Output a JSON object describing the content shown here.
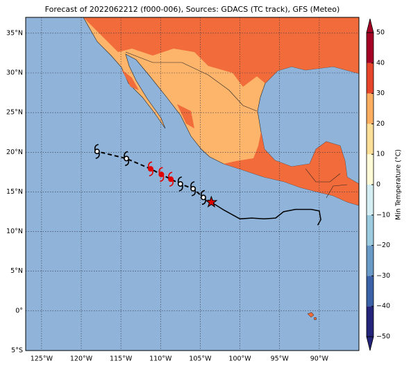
{
  "title": "Forecast of 2022062212 (f000-006), Sources: GDACS (TC track), GFS (Meteo)",
  "map": {
    "lon_range": [
      -127,
      -85
    ],
    "lat_range": [
      -5,
      37
    ],
    "lon_ticks": [
      {
        "value": -125,
        "label": "125°W"
      },
      {
        "value": -120,
        "label": "120°W"
      },
      {
        "value": -115,
        "label": "115°W"
      },
      {
        "value": -110,
        "label": "110°W"
      },
      {
        "value": -105,
        "label": "105°W"
      },
      {
        "value": -100,
        "label": "100°W"
      },
      {
        "value": -95,
        "label": "95°W"
      },
      {
        "value": -90,
        "label": "90°W"
      }
    ],
    "lat_ticks": [
      {
        "value": 35,
        "label": "35°N"
      },
      {
        "value": 30,
        "label": "30°N"
      },
      {
        "value": 25,
        "label": "25°N"
      },
      {
        "value": 20,
        "label": "20°N"
      },
      {
        "value": 15,
        "label": "15°N"
      },
      {
        "value": 10,
        "label": "10°N"
      },
      {
        "value": 5,
        "label": "5°N"
      },
      {
        "value": 0,
        "label": "0°"
      },
      {
        "value": -5,
        "label": "5°S"
      }
    ]
  },
  "colorbar": {
    "label": "Min Temperature (°C)",
    "range": [
      -50,
      50
    ],
    "ticks": [
      50,
      40,
      30,
      20,
      10,
      0,
      {
        "value": -10,
        "label": "−10"
      },
      {
        "value": -20,
        "label": "−20"
      },
      {
        "value": -30,
        "label": "−30"
      },
      {
        "value": -40,
        "label": "−40"
      },
      {
        "value": -50,
        "label": "−50"
      }
    ],
    "colors": [
      "#24247a",
      "#3b62a8",
      "#6a9bc8",
      "#9ccbe0",
      "#d5eef3",
      "#fffbd6",
      "#fedf97",
      "#fdae61",
      "#e7452a",
      "#a50026"
    ]
  },
  "track": {
    "past": {
      "lon": [
        -103.6,
        -102,
        -100,
        -98.5,
        -97,
        -95.5,
        -94.5,
        -93,
        -91,
        -90,
        -89.8,
        -90.2
      ],
      "lat": [
        13.7,
        12.7,
        11.6,
        11.7,
        11.6,
        11.7,
        12.5,
        12.8,
        12.8,
        12.6,
        11.5,
        10.8
      ]
    },
    "forecast": {
      "lon": [
        -104.6,
        -105.9,
        -107.5,
        -108.7,
        -109.9,
        -111.25,
        -114.3,
        -118.0
      ],
      "lat": [
        14.3,
        15.4,
        16.0,
        16.6,
        17.2,
        17.9,
        19.2,
        20.1
      ],
      "colors": [
        "#000000",
        "#000000",
        "#000000",
        "#e00000",
        "#e00000",
        "#e00000",
        "#000000",
        "#000000"
      ]
    },
    "current": {
      "lon": -103.6,
      "lat": 13.7
    }
  }
}
